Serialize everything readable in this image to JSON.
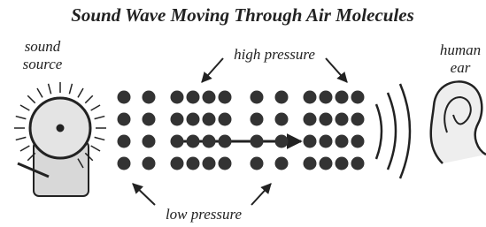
{
  "title": "Sound Wave Moving Through Air Molecules",
  "labels": {
    "sound_source": [
      "sound",
      "source"
    ],
    "high_pressure": "high pressure",
    "low_pressure": "low pressure",
    "human_ear": [
      "human",
      "ear"
    ]
  }
}
